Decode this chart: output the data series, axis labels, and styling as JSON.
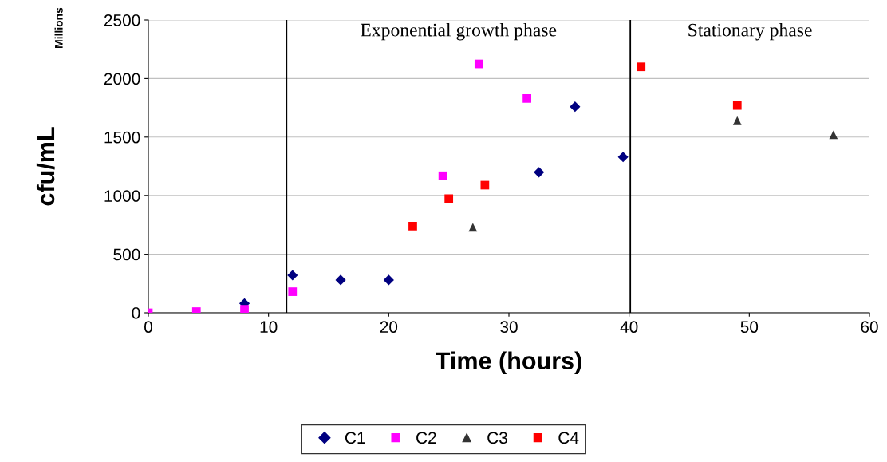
{
  "chart_data": {
    "type": "scatter",
    "xlabel": "Time (hours)",
    "ylabel": "cfu/mL",
    "xlim": [
      0,
      60
    ],
    "xticks": [
      0,
      10,
      20,
      30,
      40,
      50,
      60
    ],
    "ylim": [
      0,
      2500
    ],
    "yticks": [
      0,
      500,
      1000,
      1500,
      2000,
      2500
    ],
    "grid": "y",
    "legend": "bottom",
    "series": [
      {
        "name": "C1",
        "color": "#000080",
        "marker": "diamond",
        "x": [
          8,
          12,
          16,
          20,
          32.5,
          35.5,
          39.5
        ],
        "values": [
          80,
          320,
          280,
          280,
          1200,
          1760,
          1330
        ]
      },
      {
        "name": "C2",
        "color": "#ff00ff",
        "marker": "square",
        "x": [
          0,
          4,
          8,
          12,
          24.5,
          27.5,
          31.5
        ],
        "values": [
          0,
          10,
          30,
          180,
          1170,
          2125,
          1830
        ]
      },
      {
        "name": "C3",
        "color": "#333333",
        "marker": "triangle",
        "x": [
          27,
          49,
          57
        ],
        "values": [
          730,
          1640,
          1520
        ]
      },
      {
        "name": "C4",
        "color": "#ff0000",
        "marker": "square",
        "x": [
          22,
          25,
          28,
          41,
          49
        ],
        "values": [
          740,
          975,
          1090,
          2100,
          1770
        ]
      }
    ],
    "ref_lines": [
      {
        "axis": "x",
        "value": 11.5,
        "color": "#000000"
      },
      {
        "axis": "x",
        "value": 40.1,
        "color": "#000000"
      }
    ],
    "annotations": [
      "Millions",
      "Exponential growth phase",
      "Stationary phase"
    ]
  }
}
